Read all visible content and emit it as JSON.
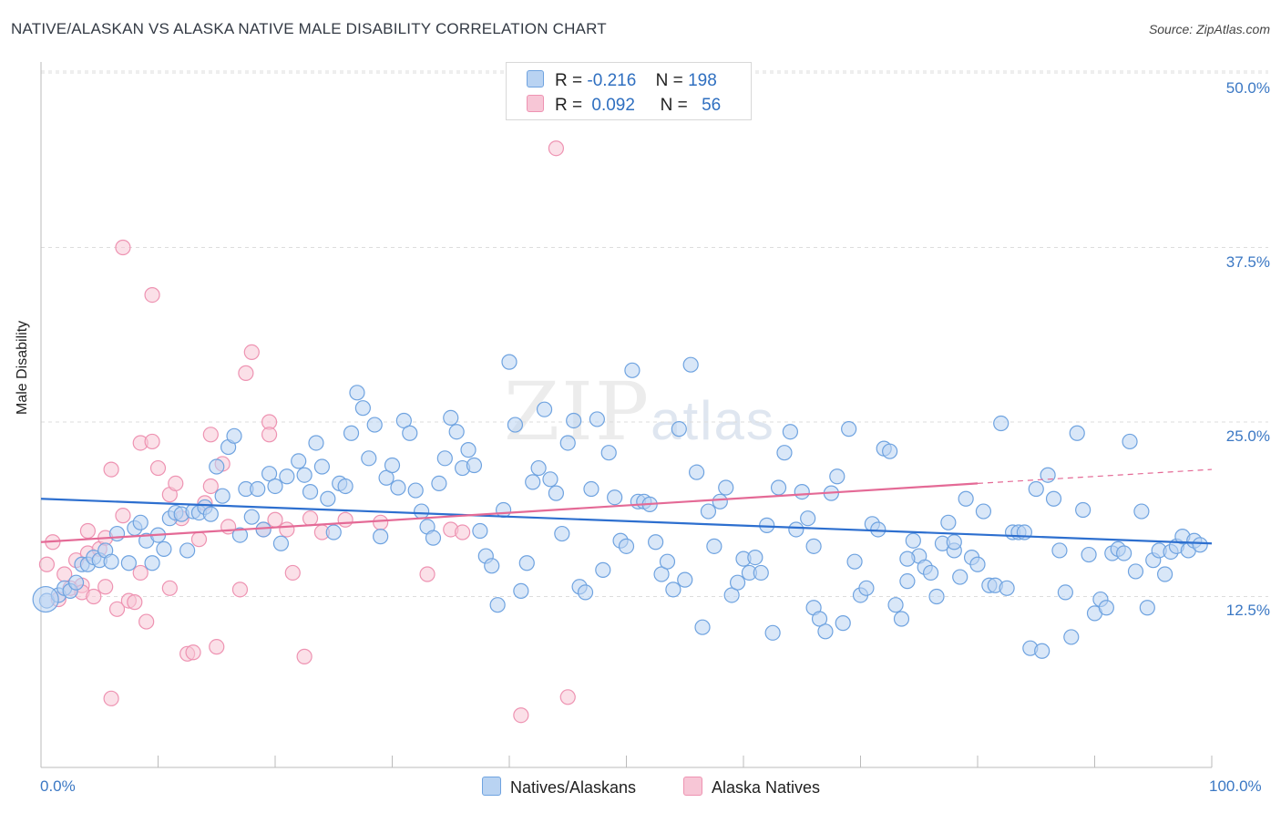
{
  "title": "NATIVE/ALASKAN VS ALASKA NATIVE MALE DISABILITY CORRELATION CHART",
  "source": "Source: ZipAtlas.com",
  "watermark": {
    "zip": "ZIP",
    "atlas": "atlas"
  },
  "legend": {
    "rows": [
      {
        "r_label": "R =",
        "r_value": "-0.216",
        "n_label": "N =",
        "n_value": "198"
      },
      {
        "r_label": "R =",
        "r_value": "0.092",
        "n_label": "N =",
        "n_value": "56"
      }
    ]
  },
  "colors": {
    "blue": "#6fa3e0",
    "blue_fill": "#b9d3f2",
    "blue_line": "#2d6fcf",
    "pink": "#ee93b2",
    "pink_fill": "#f7c6d6",
    "pink_line": "#e46a96",
    "grid": "#dddddd",
    "tick_text": "#3b78c4"
  },
  "chart_data": {
    "type": "scatter",
    "title": "NATIVE/ALASKAN VS ALASKA NATIVE MALE DISABILITY CORRELATION CHART",
    "xlabel": "",
    "ylabel": "Male Disability",
    "xlim": [
      0,
      100
    ],
    "ylim": [
      0,
      52
    ],
    "x_tick_labels": [
      "0.0%",
      "100.0%"
    ],
    "y_ticks": [
      12.5,
      25.0,
      37.5,
      50.0
    ],
    "y_tick_labels": [
      "12.5%",
      "25.0%",
      "37.5%",
      "50.0%"
    ],
    "grid": "horizontal dashed",
    "legend_position": "bottom",
    "series": [
      {
        "name": "Natives/Alaskans",
        "color": "#6fa3e0",
        "r": -0.216,
        "n": 198,
        "trend": {
          "x": [
            0,
            100
          ],
          "y": [
            19.5,
            16.3
          ]
        },
        "points": [
          [
            0.5,
            12.2
          ],
          [
            1.5,
            12.6
          ],
          [
            2,
            13.1
          ],
          [
            2.5,
            12.9
          ],
          [
            3,
            13.5
          ],
          [
            3.5,
            14.8
          ],
          [
            4,
            14.8
          ],
          [
            4.5,
            15.3
          ],
          [
            5,
            15.1
          ],
          [
            5.5,
            15.8
          ],
          [
            6,
            15
          ],
          [
            6.5,
            17
          ],
          [
            7.5,
            14.9
          ],
          [
            8,
            17.4
          ],
          [
            8.5,
            17.8
          ],
          [
            9,
            16.5
          ],
          [
            9.5,
            14.9
          ],
          [
            10,
            16.9
          ],
          [
            10.5,
            15.9
          ],
          [
            11,
            18.1
          ],
          [
            11.5,
            18.5
          ],
          [
            12,
            18.4
          ],
          [
            12.5,
            15.8
          ],
          [
            13,
            18.6
          ],
          [
            13.5,
            18.5
          ],
          [
            14,
            18.9
          ],
          [
            14.5,
            18.4
          ],
          [
            15,
            21.8
          ],
          [
            15.5,
            19.7
          ],
          [
            16,
            23.2
          ],
          [
            16.5,
            24
          ],
          [
            17,
            16.9
          ],
          [
            17.5,
            20.2
          ],
          [
            18,
            18.2
          ],
          [
            18.5,
            20.2
          ],
          [
            19,
            17.3
          ],
          [
            19.5,
            21.3
          ],
          [
            20,
            20.4
          ],
          [
            20.5,
            16.3
          ],
          [
            21,
            21.1
          ],
          [
            22,
            22.2
          ],
          [
            22.5,
            21.2
          ],
          [
            23,
            20
          ],
          [
            23.5,
            23.5
          ],
          [
            24,
            21.8
          ],
          [
            24.5,
            19.5
          ],
          [
            25,
            17.1
          ],
          [
            25.5,
            20.6
          ],
          [
            26,
            20.4
          ],
          [
            26.5,
            24.2
          ],
          [
            27,
            27.1
          ],
          [
            27.5,
            26
          ],
          [
            28,
            22.4
          ],
          [
            28.5,
            24.8
          ],
          [
            29,
            16.8
          ],
          [
            29.5,
            21
          ],
          [
            30,
            21.9
          ],
          [
            30.5,
            20.3
          ],
          [
            31,
            25.1
          ],
          [
            31.5,
            24.2
          ],
          [
            32,
            20.1
          ],
          [
            32.5,
            18.6
          ],
          [
            33,
            17.5
          ],
          [
            33.5,
            16.7
          ],
          [
            34,
            20.6
          ],
          [
            34.5,
            22.4
          ],
          [
            35,
            25.3
          ],
          [
            35.5,
            24.3
          ],
          [
            36,
            21.7
          ],
          [
            36.5,
            23
          ],
          [
            37,
            21.9
          ],
          [
            37.5,
            17.2
          ],
          [
            38,
            15.4
          ],
          [
            38.5,
            14.7
          ],
          [
            39,
            11.9
          ],
          [
            39.5,
            18.7
          ],
          [
            40,
            29.3
          ],
          [
            40.5,
            24.8
          ],
          [
            41,
            12.9
          ],
          [
            41.5,
            14.9
          ],
          [
            42,
            20.7
          ],
          [
            42.5,
            21.7
          ],
          [
            43,
            25.9
          ],
          [
            43.5,
            20.9
          ],
          [
            44,
            19.9
          ],
          [
            44.5,
            17
          ],
          [
            45,
            23.5
          ],
          [
            45.5,
            25.1
          ],
          [
            46,
            13.2
          ],
          [
            46.5,
            12.8
          ],
          [
            47,
            20.2
          ],
          [
            47.5,
            25.2
          ],
          [
            48,
            14.4
          ],
          [
            48.5,
            22.8
          ],
          [
            49,
            19.6
          ],
          [
            49.5,
            16.5
          ],
          [
            50,
            16.1
          ],
          [
            50.5,
            28.7
          ],
          [
            51,
            19.3
          ],
          [
            51.5,
            19.3
          ],
          [
            52,
            19.1
          ],
          [
            52.5,
            16.4
          ],
          [
            53,
            14.1
          ],
          [
            53.5,
            15
          ],
          [
            54,
            13
          ],
          [
            54.5,
            24.5
          ],
          [
            55,
            13.7
          ],
          [
            55.5,
            29.1
          ],
          [
            56,
            21.4
          ],
          [
            56.5,
            10.3
          ],
          [
            57,
            18.6
          ],
          [
            57.5,
            16.1
          ],
          [
            58,
            19.3
          ],
          [
            58.5,
            20.3
          ],
          [
            59,
            12.6
          ],
          [
            59.5,
            13.5
          ],
          [
            60,
            15.2
          ],
          [
            60.5,
            14.2
          ],
          [
            61,
            15.3
          ],
          [
            61.5,
            14.2
          ],
          [
            62,
            17.6
          ],
          [
            62.5,
            9.9
          ],
          [
            63,
            20.3
          ],
          [
            63.5,
            22.8
          ],
          [
            64,
            24.3
          ],
          [
            64.5,
            17.3
          ],
          [
            65,
            20
          ],
          [
            65.5,
            18.1
          ],
          [
            66,
            11.7
          ],
          [
            66.5,
            10.9
          ],
          [
            67,
            10
          ],
          [
            67.5,
            19.9
          ],
          [
            68,
            21.1
          ],
          [
            68.5,
            10.6
          ],
          [
            69,
            24.5
          ],
          [
            69.5,
            15
          ],
          [
            70,
            12.6
          ],
          [
            70.5,
            13.1
          ],
          [
            71,
            17.7
          ],
          [
            71.5,
            17.3
          ],
          [
            72,
            23.1
          ],
          [
            72.5,
            22.9
          ],
          [
            73,
            11.9
          ],
          [
            73.5,
            10.9
          ],
          [
            74,
            13.6
          ],
          [
            74.5,
            16.5
          ],
          [
            75,
            15.4
          ],
          [
            75.5,
            14.6
          ],
          [
            76,
            14.2
          ],
          [
            76.5,
            12.5
          ],
          [
            77,
            16.3
          ],
          [
            77.5,
            17.8
          ],
          [
            78,
            15.8
          ],
          [
            78.5,
            13.9
          ],
          [
            79,
            19.5
          ],
          [
            79.5,
            15.3
          ],
          [
            80,
            14.8
          ],
          [
            80.5,
            18.6
          ],
          [
            81,
            13.3
          ],
          [
            81.5,
            13.3
          ],
          [
            82,
            24.9
          ],
          [
            82.5,
            13.1
          ],
          [
            83,
            17.1
          ],
          [
            83.5,
            17.1
          ],
          [
            84,
            17.1
          ],
          [
            84.5,
            8.8
          ],
          [
            85,
            20.2
          ],
          [
            85.5,
            8.6
          ],
          [
            86,
            21.2
          ],
          [
            86.5,
            19.5
          ],
          [
            87,
            15.8
          ],
          [
            87.5,
            12.8
          ],
          [
            88,
            9.6
          ],
          [
            88.5,
            24.2
          ],
          [
            89,
            18.7
          ],
          [
            89.5,
            15.5
          ],
          [
            90,
            11.3
          ],
          [
            90.5,
            12.3
          ],
          [
            91,
            11.7
          ],
          [
            91.5,
            15.6
          ],
          [
            92,
            15.9
          ],
          [
            92.5,
            15.6
          ],
          [
            93,
            23.6
          ],
          [
            93.5,
            14.3
          ],
          [
            94,
            18.6
          ],
          [
            94.5,
            11.7
          ],
          [
            95,
            15.1
          ],
          [
            95.5,
            15.8
          ],
          [
            96,
            14.1
          ],
          [
            96.5,
            15.7
          ],
          [
            97,
            16.1
          ],
          [
            97.5,
            16.8
          ],
          [
            98,
            15.8
          ],
          [
            98.5,
            16.5
          ],
          [
            99,
            16.2
          ],
          [
            74,
            15.2
          ],
          [
            78,
            16.4
          ],
          [
            66,
            16.1
          ]
        ]
      },
      {
        "name": "Alaska Natives",
        "color": "#ee93b2",
        "r": 0.092,
        "n": 56,
        "trend": {
          "x": [
            0,
            80
          ],
          "y": [
            16.4,
            20.6
          ],
          "dashed_to": [
            100,
            21.6
          ]
        },
        "points": [
          [
            0.5,
            14.8
          ],
          [
            1,
            16.4
          ],
          [
            1.5,
            12.3
          ],
          [
            2,
            14.1
          ],
          [
            2.5,
            13.1
          ],
          [
            3,
            15.1
          ],
          [
            3.5,
            13.3
          ],
          [
            3.5,
            12.8
          ],
          [
            4,
            15.6
          ],
          [
            4,
            17.2
          ],
          [
            4.5,
            12.5
          ],
          [
            5,
            15.9
          ],
          [
            5.5,
            13.2
          ],
          [
            5.5,
            16.7
          ],
          [
            6,
            21.6
          ],
          [
            6.5,
            11.6
          ],
          [
            7,
            37.5
          ],
          [
            7,
            18.3
          ],
          [
            7.5,
            12.2
          ],
          [
            8,
            12.1
          ],
          [
            8.5,
            14.2
          ],
          [
            8.5,
            23.5
          ],
          [
            9,
            10.7
          ],
          [
            9.5,
            23.6
          ],
          [
            9.5,
            34.1
          ],
          [
            10,
            21.7
          ],
          [
            11,
            13.1
          ],
          [
            11,
            19.8
          ],
          [
            11.5,
            20.6
          ],
          [
            12.5,
            8.4
          ],
          [
            13,
            8.5
          ],
          [
            13.5,
            16.6
          ],
          [
            14,
            19.2
          ],
          [
            14.5,
            24.1
          ],
          [
            14.5,
            20.4
          ],
          [
            15,
            8.9
          ],
          [
            15.5,
            22
          ],
          [
            16,
            17.5
          ],
          [
            17,
            13
          ],
          [
            17.5,
            28.5
          ],
          [
            18,
            30
          ],
          [
            19,
            17.3
          ],
          [
            19.5,
            25
          ],
          [
            19.5,
            24.1
          ],
          [
            20,
            18
          ],
          [
            21,
            17.3
          ],
          [
            21.5,
            14.2
          ],
          [
            22.5,
            8.2
          ],
          [
            23,
            18.1
          ],
          [
            24,
            17.1
          ],
          [
            26,
            18
          ],
          [
            29,
            17.8
          ],
          [
            33,
            14.1
          ],
          [
            35,
            17.3
          ],
          [
            36,
            17.1
          ],
          [
            44,
            44.6
          ]
        ],
        "extra_points": [
          [
            6,
            5.2
          ],
          [
            41,
            4
          ],
          [
            45,
            5.3
          ],
          [
            12,
            18.1
          ]
        ]
      }
    ]
  },
  "bottom_legend": [
    {
      "label": "Natives/Alaskans"
    },
    {
      "label": "Alaska Natives"
    }
  ]
}
